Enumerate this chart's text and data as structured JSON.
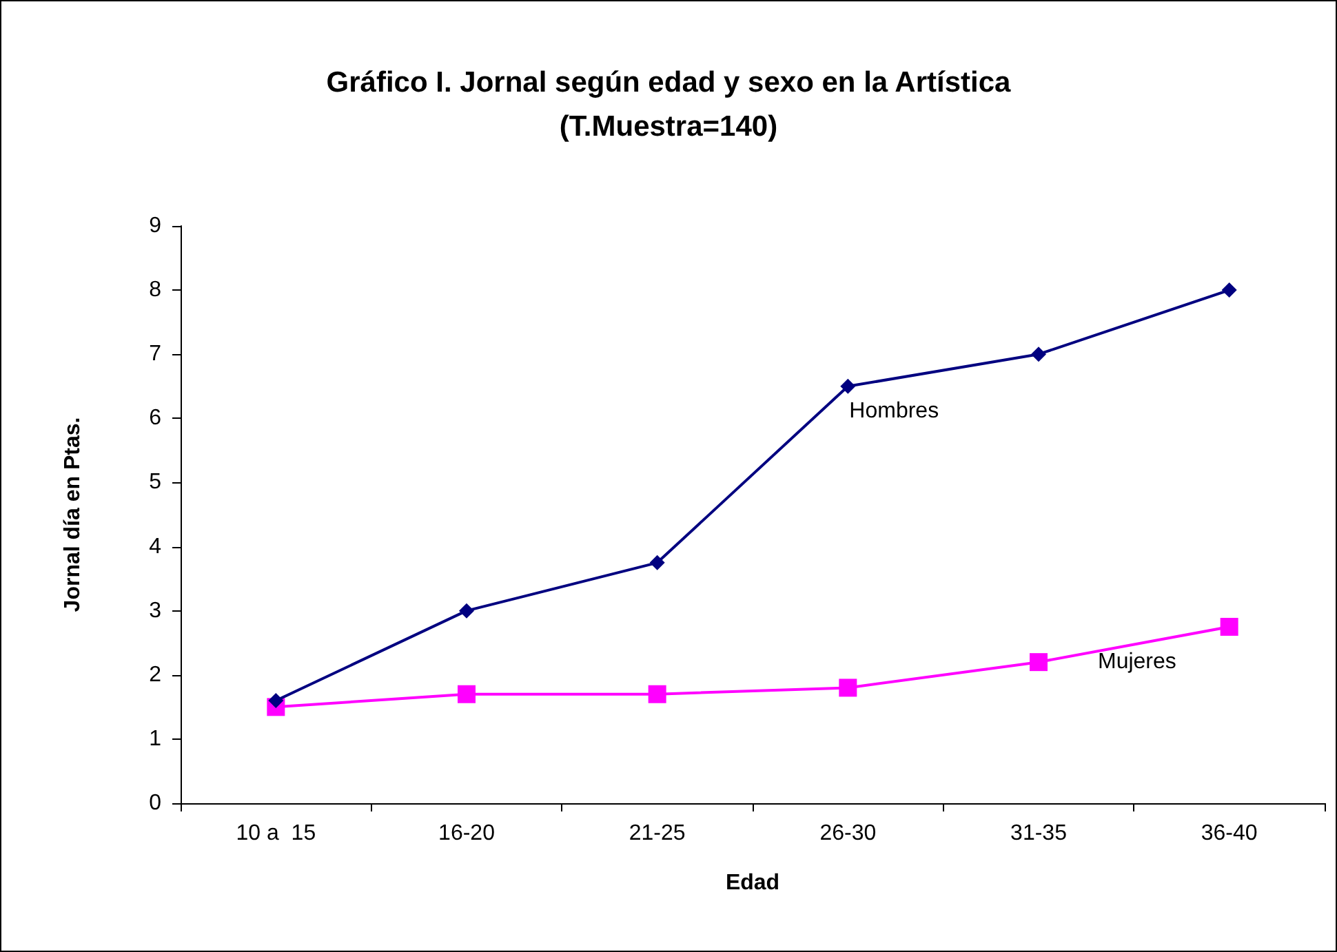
{
  "chart_data": {
    "type": "line",
    "title": "Gráfico I. Jornal según edad y sexo en la Artística\n(T.Muestra=140)",
    "xlabel": "Edad",
    "ylabel": "Jornal día en Ptas.",
    "categories": [
      "10 a  15",
      "16-20",
      "21-25",
      "26-30",
      "31-35",
      "36-40"
    ],
    "series": [
      {
        "name": "Hombres",
        "color": "#000080",
        "marker": "diamond",
        "values": [
          1.6,
          3,
          3.75,
          6.5,
          7,
          8
        ]
      },
      {
        "name": "Mujeres",
        "color": "#ff00ff",
        "marker": "square",
        "values": [
          1.5,
          1.7,
          1.7,
          1.8,
          2.2,
          2.75
        ]
      }
    ],
    "ylim": [
      0,
      9
    ],
    "yticks": [
      0,
      1,
      2,
      3,
      4,
      5,
      6,
      7,
      8,
      9
    ],
    "grid": false,
    "legend": false,
    "line_style": "solid"
  }
}
